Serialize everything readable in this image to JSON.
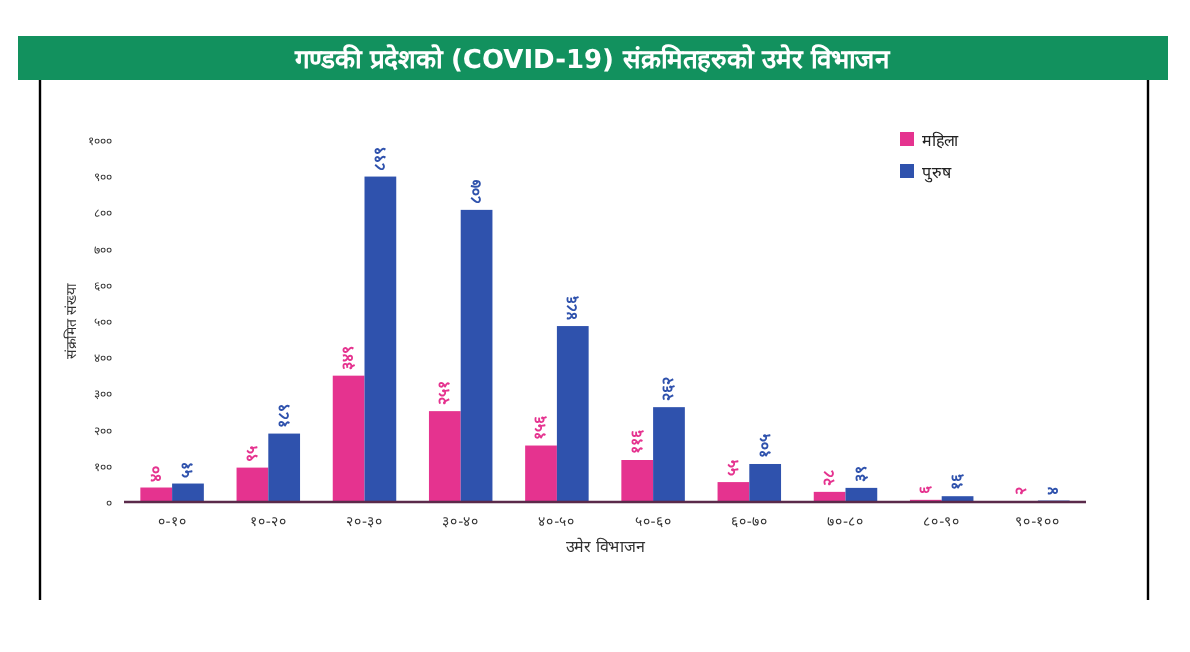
{
  "chart_data": {
    "type": "bar",
    "title": "गण्डकी प्रदेशको (COVID-19) संक्रमितहरुको उमेर विभाजन",
    "xlabel": "उमेर विभाजन",
    "ylabel": "संक्रमित संख्या",
    "categories": [
      "०-१०",
      "१०-२०",
      "२०-३०",
      "३०-४०",
      "४०-५०",
      "५०-६०",
      "६०-७०",
      "७०-८०",
      "८०-९०",
      "९०-१००"
    ],
    "series": [
      {
        "name": "महिला",
        "color": "#e5338f",
        "values": [
          40,
          95,
          349,
          251,
          156,
          116,
          55,
          28,
          6,
          2
        ],
        "value_labels": [
          "४०",
          "९५",
          "३४९",
          "२५१",
          "१५६",
          "११६",
          "५५",
          "२८",
          "६",
          "२"
        ]
      },
      {
        "name": "पुरुष",
        "color": "#2f52ad",
        "values": [
          51,
          189,
          899,
          807,
          486,
          262,
          105,
          39,
          16,
          4
        ],
        "value_labels": [
          "५१",
          "१८९",
          "८९९",
          "८०७",
          "४८६",
          "२६२",
          "१०५",
          "३९",
          "१६",
          "४"
        ]
      }
    ],
    "ylim": [
      0,
      1000
    ],
    "yticks": [
      {
        "value": 0,
        "label": "०"
      },
      {
        "value": 100,
        "label": "१००"
      },
      {
        "value": 200,
        "label": "२००"
      },
      {
        "value": 300,
        "label": "३००"
      },
      {
        "value": 400,
        "label": "४००"
      },
      {
        "value": 500,
        "label": "५००"
      },
      {
        "value": 600,
        "label": "६००"
      },
      {
        "value": 700,
        "label": "७००"
      },
      {
        "value": 800,
        "label": "८००"
      },
      {
        "value": 900,
        "label": "९००"
      },
      {
        "value": 1000,
        "label": "१०००"
      }
    ],
    "legend": "top right",
    "grid": false
  }
}
